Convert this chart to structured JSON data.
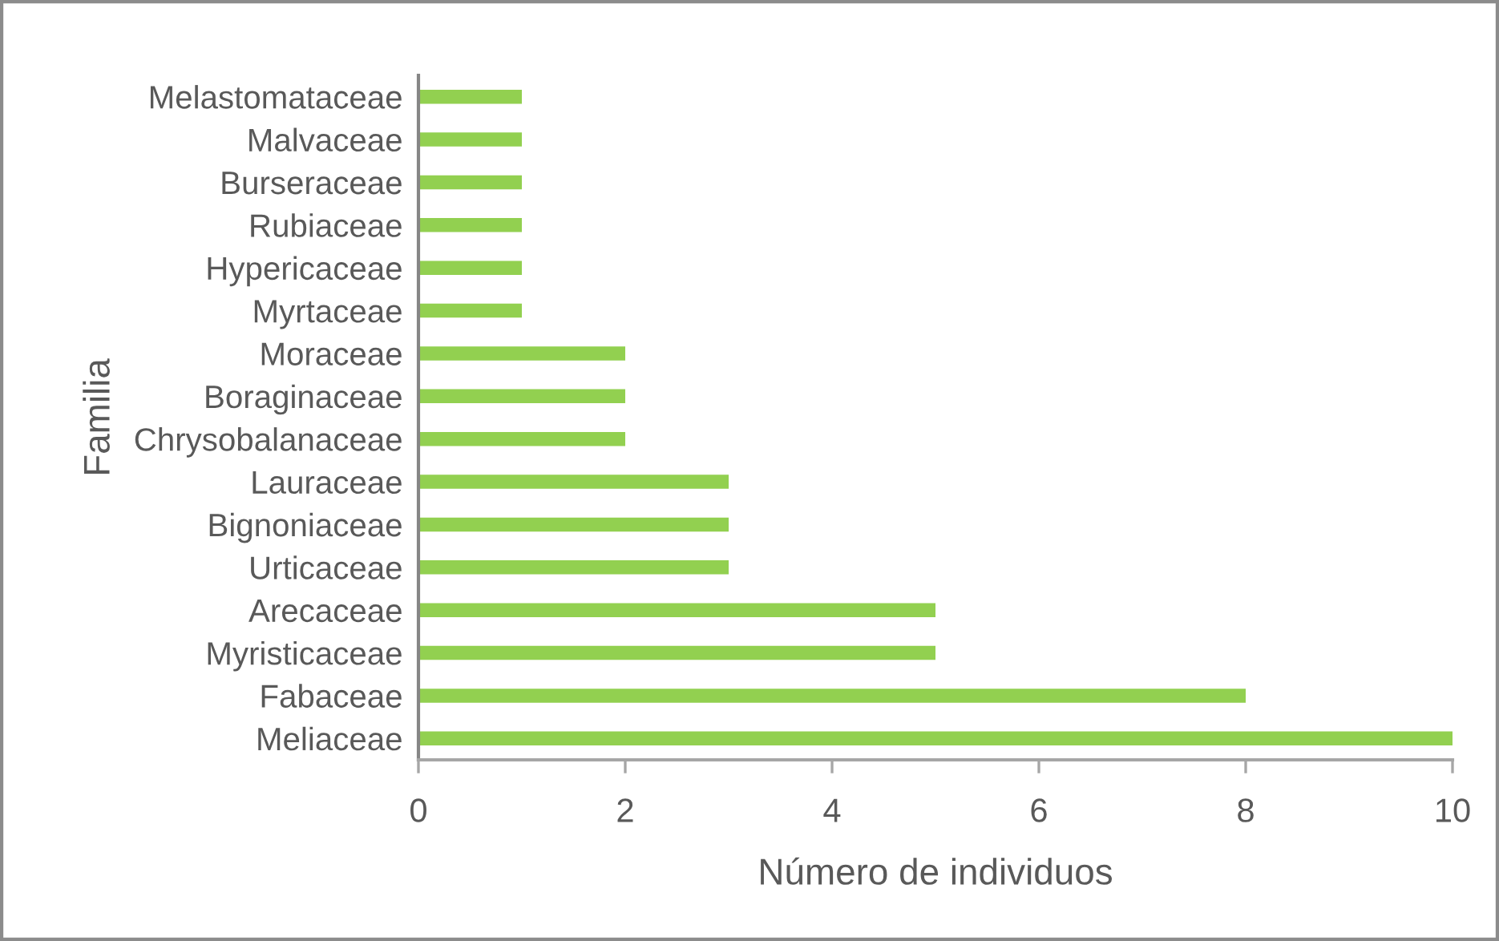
{
  "chart_data": {
    "type": "bar",
    "orientation": "horizontal",
    "xlabel": "Número de individuos",
    "ylabel": "Familia",
    "categories": [
      "Melastomataceae",
      "Malvaceae",
      "Burseraceae",
      "Rubiaceae",
      "Hypericaceae",
      "Myrtaceae",
      "Moraceae",
      "Boraginaceae",
      "Chrysobalanaceae",
      "Lauraceae",
      "Bignoniaceae",
      "Urticaceae",
      "Arecaceae",
      "Myristicaceae",
      "Fabaceae",
      "Meliaceae"
    ],
    "values": [
      1,
      1,
      1,
      1,
      1,
      1,
      2,
      2,
      2,
      3,
      3,
      3,
      5,
      5,
      8,
      10
    ],
    "color": "#92d050",
    "xlim": [
      0,
      10
    ],
    "xticks": [
      0,
      2,
      4,
      6,
      8,
      10
    ]
  }
}
